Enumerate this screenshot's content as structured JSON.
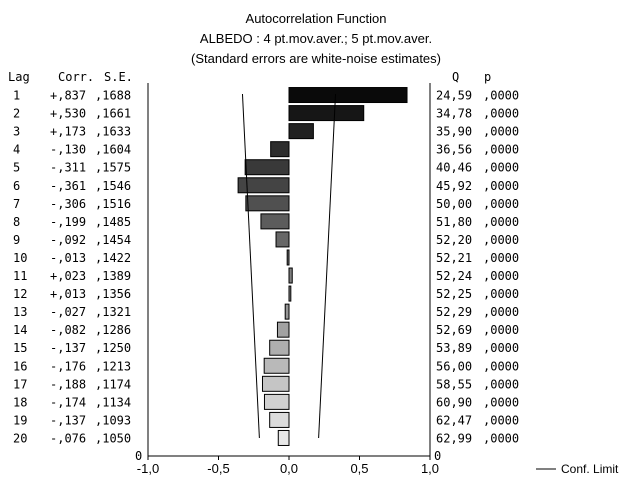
{
  "chart_data": {
    "type": "bar",
    "orientation": "horizontal",
    "title": "Autocorrelation Function",
    "subtitle": "ALBEDO  : 4 pt.mov.aver.; 5 pt.mov.aver.",
    "note": "(Standard errors are white-noise estimates)",
    "left_headers": {
      "lag": "Lag",
      "corr": "Corr.",
      "se": "S.E."
    },
    "right_headers": {
      "q": "Q",
      "p": "p"
    },
    "xlim": [
      -1.0,
      1.0
    ],
    "xticks": [
      -1.0,
      -0.5,
      0.0,
      0.5,
      1.0
    ],
    "xtick_labels": [
      "-1,0",
      "-0,5",
      "0,0",
      "0,5",
      "1,0"
    ],
    "bottom_left_label": "0",
    "bottom_right_label": "0",
    "legend": {
      "label": "Conf. Limit",
      "placement": "bottom-right"
    },
    "rows": [
      {
        "lag": "1",
        "corr_label": "+,837",
        "se_label": ",1688",
        "q_label": "24,59",
        "p_label": ",0000",
        "corr": 0.837,
        "se": 0.1688
      },
      {
        "lag": "2",
        "corr_label": "+,530",
        "se_label": ",1661",
        "q_label": "34,78",
        "p_label": ",0000",
        "corr": 0.53,
        "se": 0.1661
      },
      {
        "lag": "3",
        "corr_label": "+,173",
        "se_label": ",1633",
        "q_label": "35,90",
        "p_label": ",0000",
        "corr": 0.173,
        "se": 0.1633
      },
      {
        "lag": "4",
        "corr_label": "-,130",
        "se_label": ",1604",
        "q_label": "36,56",
        "p_label": ",0000",
        "corr": -0.13,
        "se": 0.1604
      },
      {
        "lag": "5",
        "corr_label": "-,311",
        "se_label": ",1575",
        "q_label": "40,46",
        "p_label": ",0000",
        "corr": -0.311,
        "se": 0.1575
      },
      {
        "lag": "6",
        "corr_label": "-,361",
        "se_label": ",1546",
        "q_label": "45,92",
        "p_label": ",0000",
        "corr": -0.361,
        "se": 0.1546
      },
      {
        "lag": "7",
        "corr_label": "-,306",
        "se_label": ",1516",
        "q_label": "50,00",
        "p_label": ",0000",
        "corr": -0.306,
        "se": 0.1516
      },
      {
        "lag": "8",
        "corr_label": "-,199",
        "se_label": ",1485",
        "q_label": "51,80",
        "p_label": ",0000",
        "corr": -0.199,
        "se": 0.1485
      },
      {
        "lag": "9",
        "corr_label": "-,092",
        "se_label": ",1454",
        "q_label": "52,20",
        "p_label": ",0000",
        "corr": -0.092,
        "se": 0.1454
      },
      {
        "lag": "10",
        "corr_label": "-,013",
        "se_label": ",1422",
        "q_label": "52,21",
        "p_label": ",0000",
        "corr": -0.013,
        "se": 0.1422
      },
      {
        "lag": "11",
        "corr_label": "+,023",
        "se_label": ",1389",
        "q_label": "52,24",
        "p_label": ",0000",
        "corr": 0.023,
        "se": 0.1389
      },
      {
        "lag": "12",
        "corr_label": "+,013",
        "se_label": ",1356",
        "q_label": "52,25",
        "p_label": ",0000",
        "corr": 0.013,
        "se": 0.1356
      },
      {
        "lag": "13",
        "corr_label": "-,027",
        "se_label": ",1321",
        "q_label": "52,29",
        "p_label": ",0000",
        "corr": -0.027,
        "se": 0.1321
      },
      {
        "lag": "14",
        "corr_label": "-,082",
        "se_label": ",1286",
        "q_label": "52,69",
        "p_label": ",0000",
        "corr": -0.082,
        "se": 0.1286
      },
      {
        "lag": "15",
        "corr_label": "-,137",
        "se_label": ",1250",
        "q_label": "53,89",
        "p_label": ",0000",
        "corr": -0.137,
        "se": 0.125
      },
      {
        "lag": "16",
        "corr_label": "-,176",
        "se_label": ",1213",
        "q_label": "56,00",
        "p_label": ",0000",
        "corr": -0.176,
        "se": 0.1213
      },
      {
        "lag": "17",
        "corr_label": "-,188",
        "se_label": ",1174",
        "q_label": "58,55",
        "p_label": ",0000",
        "corr": -0.188,
        "se": 0.1174
      },
      {
        "lag": "18",
        "corr_label": "-,174",
        "se_label": ",1134",
        "q_label": "60,90",
        "p_label": ",0000",
        "corr": -0.174,
        "se": 0.1134
      },
      {
        "lag": "19",
        "corr_label": "-,137",
        "se_label": ",1093",
        "q_label": "62,47",
        "p_label": ",0000",
        "corr": -0.137,
        "se": 0.1093
      },
      {
        "lag": "20",
        "corr_label": "-,076",
        "se_label": ",1050",
        "q_label": "62,99",
        "p_label": ",0000",
        "corr": -0.076,
        "se": 0.105
      }
    ],
    "conf_limit": {
      "upper_start": 0.33,
      "upper_end": 0.21,
      "lower_start": -0.33,
      "lower_end": -0.21
    },
    "bar_shade": {
      "first": "#0a0a0a",
      "last": "#e8e8e8"
    },
    "colors": {
      "line": "#000000",
      "bar_edge": "#000000",
      "background": "#ffffff"
    }
  }
}
